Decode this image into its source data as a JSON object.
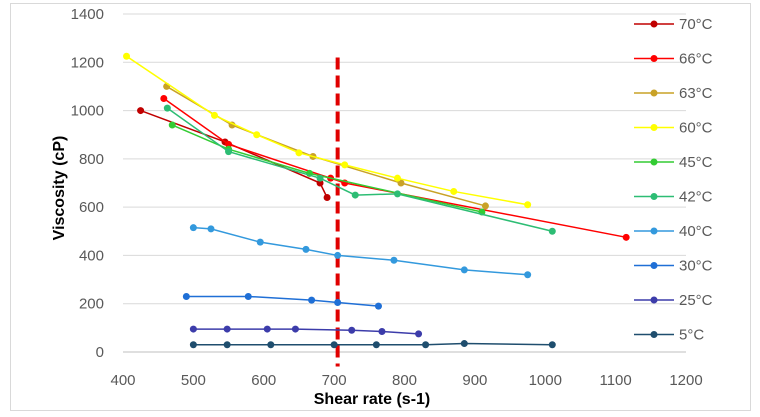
{
  "chart_data": {
    "type": "line",
    "title": "",
    "xlabel": "Shear rate (s-1)",
    "ylabel": "Viscosity (cP)",
    "xlim": [
      400,
      1200
    ],
    "ylim": [
      0,
      1400
    ],
    "xticks": [
      400,
      500,
      600,
      700,
      800,
      900,
      1000,
      1100,
      1200
    ],
    "yticks": [
      0,
      200,
      400,
      600,
      800,
      1000,
      1200,
      1400
    ],
    "grid": "horizontal",
    "legend_position": "right",
    "reference_line": {
      "x": 705,
      "color": "#e00000",
      "style": "dashed"
    },
    "series": [
      {
        "name": "70°C",
        "color": "#c00000",
        "points": [
          [
            425,
            1000
          ],
          [
            545,
            870
          ],
          [
            680,
            700
          ],
          [
            690,
            640
          ]
        ]
      },
      {
        "name": "66°C",
        "color": "#ff0000",
        "points": [
          [
            458,
            1050
          ],
          [
            550,
            860
          ],
          [
            695,
            720
          ],
          [
            715,
            700
          ],
          [
            1115,
            475
          ]
        ]
      },
      {
        "name": "63°C",
        "color": "#c9a227",
        "points": [
          [
            462,
            1100
          ],
          [
            555,
            940
          ],
          [
            670,
            810
          ],
          [
            795,
            700
          ],
          [
            915,
            605
          ]
        ]
      },
      {
        "name": "60°C",
        "color": "#ffff00",
        "points": [
          [
            405,
            1225
          ],
          [
            530,
            980
          ],
          [
            590,
            900
          ],
          [
            650,
            825
          ],
          [
            715,
            775
          ],
          [
            790,
            720
          ],
          [
            870,
            665
          ],
          [
            975,
            610
          ]
        ]
      },
      {
        "name": "45°C",
        "color": "#33cc33",
        "points": [
          [
            470,
            940
          ],
          [
            550,
            840
          ],
          [
            665,
            740
          ],
          [
            910,
            580
          ]
        ]
      },
      {
        "name": "42°C",
        "color": "#2dbd74",
        "points": [
          [
            463,
            1010
          ],
          [
            550,
            830
          ],
          [
            680,
            720
          ],
          [
            730,
            650
          ],
          [
            790,
            655
          ],
          [
            1010,
            500
          ]
        ]
      },
      {
        "name": "40°C",
        "color": "#3399dd",
        "points": [
          [
            500,
            515
          ],
          [
            525,
            510
          ],
          [
            595,
            455
          ],
          [
            660,
            425
          ],
          [
            705,
            400
          ],
          [
            785,
            380
          ],
          [
            885,
            340
          ],
          [
            975,
            320
          ]
        ]
      },
      {
        "name": "30°C",
        "color": "#1f6fd6",
        "points": [
          [
            490,
            230
          ],
          [
            578,
            230
          ],
          [
            668,
            215
          ],
          [
            705,
            205
          ],
          [
            763,
            190
          ]
        ]
      },
      {
        "name": "25°C",
        "color": "#3c3caa",
        "points": [
          [
            500,
            95
          ],
          [
            548,
            95
          ],
          [
            605,
            95
          ],
          [
            645,
            95
          ],
          [
            725,
            90
          ],
          [
            768,
            85
          ],
          [
            820,
            75
          ]
        ]
      },
      {
        "name": "5°C",
        "color": "#1f4e6e",
        "points": [
          [
            500,
            30
          ],
          [
            548,
            30
          ],
          [
            610,
            30
          ],
          [
            700,
            30
          ],
          [
            760,
            30
          ],
          [
            830,
            30
          ],
          [
            885,
            35
          ],
          [
            1010,
            30
          ]
        ]
      }
    ]
  }
}
